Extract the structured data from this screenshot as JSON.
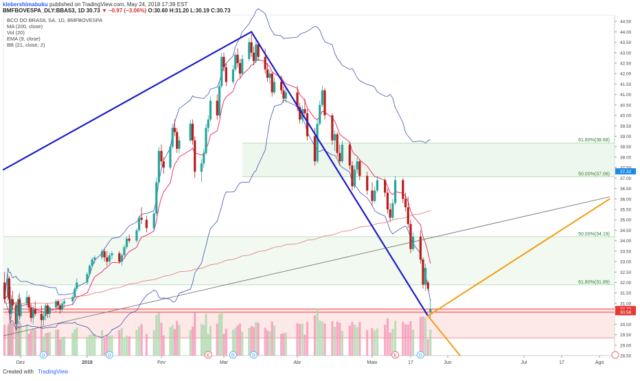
{
  "header": {
    "user": "klebershimabuku",
    "published_text": "published on TradingView.com, May 24, 2018 17:39 EST",
    "symbol": "BMFBOVESPA_DLY:BBAS3, 1D",
    "last": "30.73",
    "change": "▼ −0.97 (−3.06%)",
    "ohlc": "O:30.60 H:31.20 L:30.19 C:30.73"
  },
  "indicators": [
    "BCO DO BRASIL SA, 1D, BMFBOVESPA",
    "MA (200, close)",
    "Vol (20)",
    "EMA (9, close)",
    "BB (21, close, 2)"
  ],
  "footer": {
    "created_with": "Created with",
    "brand": "TradingView"
  },
  "colors": {
    "up": "#26a69a",
    "down": "#b71c1c",
    "ema": "#e91e63",
    "bb": "#3f51b5",
    "ma200": "#e57373",
    "trend": "#1a1ac8",
    "projection": "#f39c12",
    "fib": "#2e7d32",
    "price_tag": "#e53935",
    "volume_up": "#a5d6a7",
    "volume_down": "#f48fb1"
  },
  "chart_data": {
    "type": "candlestick",
    "ylim": [
      28.5,
      44.8
    ],
    "y_ticks": [
      "44.50",
      "44.00",
      "43.50",
      "43.00",
      "42.50",
      "42.00",
      "41.50",
      "41.00",
      "40.50",
      "40.00",
      "39.50",
      "39.00",
      "38.50",
      "38.00",
      "37.50",
      "37.00",
      "36.50",
      "36.00",
      "35.50",
      "35.00",
      "34.50",
      "34.00",
      "33.50",
      "33.00",
      "32.50",
      "32.00",
      "31.50",
      "31.00",
      "30.50",
      "30.00",
      "29.50",
      "29.00",
      "28.50"
    ],
    "x_ticks": [
      {
        "date": "2017-12-01",
        "label": "Dez"
      },
      {
        "date": "2018-01-02",
        "label": "2018"
      },
      {
        "date": "2018-02-01",
        "label": "Fev"
      },
      {
        "date": "2018-03-01",
        "label": "Mar"
      },
      {
        "date": "2018-04-02",
        "label": "Abr"
      },
      {
        "date": "2018-05-02",
        "label": "Maio"
      },
      {
        "date": "2018-05-17",
        "label": "17"
      },
      {
        "date": "2018-06-01",
        "label": "Jun"
      },
      {
        "date": "2018-07-02",
        "label": "Jul"
      },
      {
        "date": "2018-07-17",
        "label": "17"
      },
      {
        "date": "2018-08-01",
        "label": "Ago"
      }
    ],
    "price_labels": [
      {
        "value": 37.32,
        "text": "37.32",
        "bg": "#1e88e5"
      },
      {
        "value": 30.73,
        "text": "30.73",
        "bg": "#e53935"
      },
      {
        "value": 30.58,
        "text": "30.58",
        "bg": "#e53935"
      }
    ],
    "fib_levels": [
      {
        "text": "61.80%(38.68)",
        "value": 38.68
      },
      {
        "text": "50.00%(37.06)",
        "value": 37.06
      },
      {
        "text": "50.00%(34.19)",
        "value": 34.19
      },
      {
        "text": "61.80%(31.89)",
        "value": 31.89
      }
    ],
    "event_markers": [
      {
        "date": "2017-12-12",
        "letter": "D"
      },
      {
        "date": "2018-01-11",
        "letter": "D"
      },
      {
        "date": "2018-02-22",
        "letter": "E"
      },
      {
        "date": "2018-03-05",
        "letter": "D"
      },
      {
        "date": "2018-03-14",
        "letter": "D"
      },
      {
        "date": "2018-05-11",
        "letter": "E"
      },
      {
        "date": "2018-05-21",
        "letter": "D"
      }
    ],
    "trend_lines": [
      {
        "from": [
          "2017-11-16",
          37.4
        ],
        "to": [
          "2018-03-13",
          44.0
        ],
        "color": "trend"
      },
      {
        "from": [
          "2018-03-13",
          44.0
        ],
        "to": [
          "2018-05-24",
          30.4
        ],
        "color": "trend"
      },
      {
        "from": [
          "2017-11-16",
          29.45
        ],
        "to": [
          "2018-08-05",
          36.1
        ],
        "color": "thin"
      },
      {
        "from": [
          "2018-05-24",
          30.4
        ],
        "to": [
          "2018-08-05",
          36.0
        ],
        "color": "projection"
      },
      {
        "from": [
          "2018-05-24",
          30.4
        ],
        "to": [
          "2018-06-06",
          28.5
        ],
        "color": "projection"
      }
    ],
    "candles": [
      {
        "date": "2017-11-17",
        "o": 32.0,
        "h": 32.5,
        "l": 31.0,
        "c": 31.2
      },
      {
        "date": "2017-11-20",
        "o": 31.3,
        "h": 32.4,
        "l": 31.1,
        "c": 32.2
      },
      {
        "date": "2017-11-21",
        "o": 32.2,
        "h": 32.3,
        "l": 31.0,
        "c": 31.2
      },
      {
        "date": "2017-11-22",
        "o": 31.2,
        "h": 31.8,
        "l": 30.2,
        "c": 30.5
      },
      {
        "date": "2017-11-23",
        "o": 30.5,
        "h": 31.4,
        "l": 30.3,
        "c": 31.2
      },
      {
        "date": "2017-11-24",
        "o": 31.2,
        "h": 31.6,
        "l": 30.7,
        "c": 30.9
      },
      {
        "date": "2017-11-27",
        "o": 30.9,
        "h": 31.1,
        "l": 29.7,
        "c": 30.0
      },
      {
        "date": "2017-11-28",
        "o": 30.0,
        "h": 31.0,
        "l": 29.8,
        "c": 30.8
      },
      {
        "date": "2017-11-29",
        "o": 30.8,
        "h": 31.4,
        "l": 30.6,
        "c": 31.2
      },
      {
        "date": "2017-11-30",
        "o": 31.2,
        "h": 31.5,
        "l": 30.2,
        "c": 30.4
      },
      {
        "date": "2017-12-01",
        "o": 30.4,
        "h": 31.3,
        "l": 30.3,
        "c": 31.0
      },
      {
        "date": "2017-12-04",
        "o": 31.0,
        "h": 31.6,
        "l": 30.8,
        "c": 31.3
      },
      {
        "date": "2017-12-05",
        "o": 31.3,
        "h": 31.4,
        "l": 30.6,
        "c": 30.8
      },
      {
        "date": "2017-12-06",
        "o": 30.8,
        "h": 31.0,
        "l": 30.1,
        "c": 30.3
      },
      {
        "date": "2017-12-07",
        "o": 30.3,
        "h": 30.9,
        "l": 30.0,
        "c": 30.7
      },
      {
        "date": "2017-12-08",
        "o": 30.7,
        "h": 31.1,
        "l": 30.4,
        "c": 30.5
      },
      {
        "date": "2017-12-11",
        "o": 30.5,
        "h": 30.9,
        "l": 30.0,
        "c": 30.2
      },
      {
        "date": "2017-12-12",
        "o": 30.2,
        "h": 30.6,
        "l": 29.9,
        "c": 30.4
      },
      {
        "date": "2017-12-13",
        "o": 30.4,
        "h": 31.0,
        "l": 30.2,
        "c": 30.9
      },
      {
        "date": "2017-12-14",
        "o": 30.9,
        "h": 31.0,
        "l": 30.3,
        "c": 30.5
      },
      {
        "date": "2017-12-15",
        "o": 30.5,
        "h": 30.9,
        "l": 30.3,
        "c": 30.8
      },
      {
        "date": "2017-12-18",
        "o": 30.8,
        "h": 31.2,
        "l": 30.6,
        "c": 31.1
      },
      {
        "date": "2017-12-19",
        "o": 31.1,
        "h": 31.2,
        "l": 30.7,
        "c": 30.9
      },
      {
        "date": "2017-12-20",
        "o": 30.9,
        "h": 31.0,
        "l": 30.5,
        "c": 30.7
      },
      {
        "date": "2017-12-21",
        "o": 30.7,
        "h": 31.1,
        "l": 30.6,
        "c": 31.0
      },
      {
        "date": "2017-12-22",
        "o": 31.0,
        "h": 31.2,
        "l": 30.8,
        "c": 31.1
      },
      {
        "date": "2017-12-26",
        "o": 31.1,
        "h": 31.4,
        "l": 30.9,
        "c": 31.3
      },
      {
        "date": "2017-12-27",
        "o": 31.3,
        "h": 31.8,
        "l": 31.2,
        "c": 31.7
      },
      {
        "date": "2017-12-28",
        "o": 31.7,
        "h": 32.2,
        "l": 31.6,
        "c": 32.0
      },
      {
        "date": "2018-01-02",
        "o": 32.0,
        "h": 32.5,
        "l": 31.9,
        "c": 32.4
      },
      {
        "date": "2018-01-03",
        "o": 32.4,
        "h": 32.9,
        "l": 32.3,
        "c": 32.8
      },
      {
        "date": "2018-01-04",
        "o": 32.8,
        "h": 33.2,
        "l": 32.7,
        "c": 33.1
      },
      {
        "date": "2018-01-05",
        "o": 33.1,
        "h": 33.3,
        "l": 32.9,
        "c": 33.2
      },
      {
        "date": "2018-01-08",
        "o": 33.2,
        "h": 33.6,
        "l": 33.1,
        "c": 33.5
      },
      {
        "date": "2018-01-09",
        "o": 33.5,
        "h": 33.6,
        "l": 33.0,
        "c": 33.2
      },
      {
        "date": "2018-01-10",
        "o": 33.2,
        "h": 33.5,
        "l": 32.8,
        "c": 33.0
      },
      {
        "date": "2018-01-11",
        "o": 33.0,
        "h": 33.4,
        "l": 32.9,
        "c": 33.3
      },
      {
        "date": "2018-01-12",
        "o": 33.3,
        "h": 33.5,
        "l": 33.1,
        "c": 33.4
      },
      {
        "date": "2018-01-15",
        "o": 33.4,
        "h": 33.5,
        "l": 32.9,
        "c": 33.0
      },
      {
        "date": "2018-01-16",
        "o": 33.0,
        "h": 33.4,
        "l": 32.8,
        "c": 33.3
      },
      {
        "date": "2018-01-17",
        "o": 33.3,
        "h": 33.8,
        "l": 33.2,
        "c": 33.7
      },
      {
        "date": "2018-01-18",
        "o": 33.7,
        "h": 34.2,
        "l": 33.6,
        "c": 34.1
      },
      {
        "date": "2018-01-19",
        "o": 34.1,
        "h": 34.3,
        "l": 33.9,
        "c": 34.0
      },
      {
        "date": "2018-01-22",
        "o": 34.0,
        "h": 34.6,
        "l": 33.9,
        "c": 34.5
      },
      {
        "date": "2018-01-23",
        "o": 34.5,
        "h": 35.2,
        "l": 34.4,
        "c": 35.1
      },
      {
        "date": "2018-01-24",
        "o": 35.1,
        "h": 35.6,
        "l": 34.8,
        "c": 35.0
      },
      {
        "date": "2018-01-26",
        "o": 35.0,
        "h": 35.2,
        "l": 34.4,
        "c": 34.6
      },
      {
        "date": "2018-01-29",
        "o": 34.6,
        "h": 35.4,
        "l": 34.5,
        "c": 35.3
      },
      {
        "date": "2018-01-30",
        "o": 35.3,
        "h": 37.0,
        "l": 35.2,
        "c": 36.8
      },
      {
        "date": "2018-01-31",
        "o": 36.8,
        "h": 38.5,
        "l": 36.7,
        "c": 38.3
      },
      {
        "date": "2018-02-01",
        "o": 38.3,
        "h": 38.6,
        "l": 37.6,
        "c": 37.8
      },
      {
        "date": "2018-02-02",
        "o": 37.8,
        "h": 38.0,
        "l": 37.2,
        "c": 37.5
      },
      {
        "date": "2018-02-05",
        "o": 37.5,
        "h": 38.6,
        "l": 37.4,
        "c": 38.5
      },
      {
        "date": "2018-02-06",
        "o": 38.5,
        "h": 39.6,
        "l": 38.4,
        "c": 39.4
      },
      {
        "date": "2018-02-07",
        "o": 39.4,
        "h": 39.8,
        "l": 39.0,
        "c": 39.2
      },
      {
        "date": "2018-02-08",
        "o": 39.2,
        "h": 39.4,
        "l": 38.2,
        "c": 38.4
      },
      {
        "date": "2018-02-09",
        "o": 38.4,
        "h": 39.0,
        "l": 38.2,
        "c": 38.8
      },
      {
        "date": "2018-02-14",
        "o": 38.8,
        "h": 39.8,
        "l": 38.7,
        "c": 39.6
      },
      {
        "date": "2018-02-15",
        "o": 39.6,
        "h": 39.8,
        "l": 38.6,
        "c": 38.8
      },
      {
        "date": "2018-02-16",
        "o": 38.8,
        "h": 39.0,
        "l": 37.0,
        "c": 37.3
      },
      {
        "date": "2018-02-19",
        "o": 37.3,
        "h": 37.9,
        "l": 36.8,
        "c": 37.7
      },
      {
        "date": "2018-02-20",
        "o": 37.7,
        "h": 38.4,
        "l": 37.5,
        "c": 38.2
      },
      {
        "date": "2018-02-21",
        "o": 38.2,
        "h": 39.6,
        "l": 38.1,
        "c": 39.4
      },
      {
        "date": "2018-02-22",
        "o": 39.4,
        "h": 40.0,
        "l": 39.2,
        "c": 39.8
      },
      {
        "date": "2018-02-23",
        "o": 39.8,
        "h": 40.9,
        "l": 39.7,
        "c": 40.7
      },
      {
        "date": "2018-02-26",
        "o": 40.7,
        "h": 41.0,
        "l": 39.8,
        "c": 40.0
      },
      {
        "date": "2018-02-27",
        "o": 40.0,
        "h": 41.6,
        "l": 39.9,
        "c": 41.4
      },
      {
        "date": "2018-02-28",
        "o": 41.4,
        "h": 43.0,
        "l": 41.3,
        "c": 42.8
      },
      {
        "date": "2018-03-01",
        "o": 42.8,
        "h": 43.0,
        "l": 42.1,
        "c": 42.3
      },
      {
        "date": "2018-03-02",
        "o": 42.3,
        "h": 42.5,
        "l": 41.4,
        "c": 41.6
      },
      {
        "date": "2018-03-05",
        "o": 41.6,
        "h": 42.4,
        "l": 41.5,
        "c": 42.2
      },
      {
        "date": "2018-03-06",
        "o": 42.2,
        "h": 43.0,
        "l": 42.1,
        "c": 42.9
      },
      {
        "date": "2018-03-07",
        "o": 42.9,
        "h": 43.2,
        "l": 42.3,
        "c": 42.5
      },
      {
        "date": "2018-03-08",
        "o": 42.5,
        "h": 42.7,
        "l": 41.8,
        "c": 42.0
      },
      {
        "date": "2018-03-09",
        "o": 42.0,
        "h": 42.9,
        "l": 41.9,
        "c": 42.7
      },
      {
        "date": "2018-03-12",
        "o": 42.7,
        "h": 43.7,
        "l": 42.6,
        "c": 43.5
      },
      {
        "date": "2018-03-13",
        "o": 43.5,
        "h": 43.9,
        "l": 42.8,
        "c": 43.0
      },
      {
        "date": "2018-03-14",
        "o": 43.0,
        "h": 43.3,
        "l": 42.4,
        "c": 42.6
      },
      {
        "date": "2018-03-15",
        "o": 42.6,
        "h": 43.6,
        "l": 42.5,
        "c": 43.4
      },
      {
        "date": "2018-03-16",
        "o": 43.4,
        "h": 43.5,
        "l": 42.6,
        "c": 42.8
      },
      {
        "date": "2018-03-19",
        "o": 42.8,
        "h": 43.2,
        "l": 42.0,
        "c": 42.2
      },
      {
        "date": "2018-03-20",
        "o": 42.2,
        "h": 42.5,
        "l": 41.6,
        "c": 41.8
      },
      {
        "date": "2018-03-21",
        "o": 41.8,
        "h": 42.2,
        "l": 41.5,
        "c": 42.0
      },
      {
        "date": "2018-03-22",
        "o": 42.0,
        "h": 42.1,
        "l": 40.9,
        "c": 41.1
      },
      {
        "date": "2018-03-23",
        "o": 41.1,
        "h": 41.8,
        "l": 41.0,
        "c": 41.6
      },
      {
        "date": "2018-03-26",
        "o": 41.6,
        "h": 41.9,
        "l": 41.0,
        "c": 41.2
      },
      {
        "date": "2018-03-27",
        "o": 41.2,
        "h": 41.4,
        "l": 40.6,
        "c": 40.8
      },
      {
        "date": "2018-03-28",
        "o": 40.8,
        "h": 41.3,
        "l": 40.6,
        "c": 41.1
      },
      {
        "date": "2018-04-02",
        "o": 41.1,
        "h": 41.4,
        "l": 40.2,
        "c": 40.4
      },
      {
        "date": "2018-04-03",
        "o": 40.4,
        "h": 40.6,
        "l": 39.6,
        "c": 39.8
      },
      {
        "date": "2018-04-04",
        "o": 39.8,
        "h": 40.5,
        "l": 39.6,
        "c": 40.3
      },
      {
        "date": "2018-04-05",
        "o": 40.3,
        "h": 40.8,
        "l": 40.0,
        "c": 40.1
      },
      {
        "date": "2018-04-06",
        "o": 40.1,
        "h": 40.3,
        "l": 38.8,
        "c": 39.0
      },
      {
        "date": "2018-04-09",
        "o": 39.0,
        "h": 39.4,
        "l": 37.6,
        "c": 37.8
      },
      {
        "date": "2018-04-10",
        "o": 37.8,
        "h": 39.8,
        "l": 37.7,
        "c": 39.6
      },
      {
        "date": "2018-04-11",
        "o": 39.6,
        "h": 40.7,
        "l": 39.5,
        "c": 40.5
      },
      {
        "date": "2018-04-12",
        "o": 40.5,
        "h": 41.4,
        "l": 40.4,
        "c": 41.2
      },
      {
        "date": "2018-04-13",
        "o": 41.2,
        "h": 41.3,
        "l": 39.8,
        "c": 40.0
      },
      {
        "date": "2018-04-16",
        "o": 40.0,
        "h": 40.1,
        "l": 38.6,
        "c": 38.8
      },
      {
        "date": "2018-04-17",
        "o": 38.8,
        "h": 39.3,
        "l": 38.3,
        "c": 39.1
      },
      {
        "date": "2018-04-18",
        "o": 39.1,
        "h": 39.2,
        "l": 38.0,
        "c": 38.2
      },
      {
        "date": "2018-04-19",
        "o": 38.2,
        "h": 38.6,
        "l": 37.6,
        "c": 37.8
      },
      {
        "date": "2018-04-20",
        "o": 37.8,
        "h": 38.8,
        "l": 37.7,
        "c": 38.6
      },
      {
        "date": "2018-04-23",
        "o": 38.6,
        "h": 38.7,
        "l": 37.4,
        "c": 37.6
      },
      {
        "date": "2018-04-24",
        "o": 37.6,
        "h": 37.8,
        "l": 36.4,
        "c": 36.6
      },
      {
        "date": "2018-04-25",
        "o": 36.6,
        "h": 37.6,
        "l": 36.5,
        "c": 37.4
      },
      {
        "date": "2018-04-26",
        "o": 37.4,
        "h": 38.0,
        "l": 37.2,
        "c": 37.8
      },
      {
        "date": "2018-04-27",
        "o": 37.8,
        "h": 37.9,
        "l": 36.9,
        "c": 37.1
      },
      {
        "date": "2018-04-30",
        "o": 37.1,
        "h": 37.3,
        "l": 36.2,
        "c": 36.4
      },
      {
        "date": "2018-05-02",
        "o": 36.4,
        "h": 36.8,
        "l": 35.7,
        "c": 35.9
      },
      {
        "date": "2018-05-03",
        "o": 35.9,
        "h": 36.6,
        "l": 35.8,
        "c": 36.4
      },
      {
        "date": "2018-05-04",
        "o": 36.4,
        "h": 37.1,
        "l": 36.3,
        "c": 36.9
      },
      {
        "date": "2018-05-07",
        "o": 36.9,
        "h": 37.0,
        "l": 36.1,
        "c": 36.3
      },
      {
        "date": "2018-05-08",
        "o": 36.3,
        "h": 36.5,
        "l": 35.3,
        "c": 35.5
      },
      {
        "date": "2018-05-09",
        "o": 35.5,
        "h": 35.8,
        "l": 34.9,
        "c": 35.1
      },
      {
        "date": "2018-05-10",
        "o": 35.1,
        "h": 36.0,
        "l": 35.0,
        "c": 35.8
      },
      {
        "date": "2018-05-11",
        "o": 35.8,
        "h": 37.1,
        "l": 35.7,
        "c": 36.9
      },
      {
        "date": "2018-05-14",
        "o": 36.9,
        "h": 37.0,
        "l": 35.8,
        "c": 36.0
      },
      {
        "date": "2018-05-15",
        "o": 36.0,
        "h": 36.3,
        "l": 35.4,
        "c": 35.6
      },
      {
        "date": "2018-05-16",
        "o": 35.6,
        "h": 36.1,
        "l": 34.6,
        "c": 34.8
      },
      {
        "date": "2018-05-17",
        "o": 34.8,
        "h": 35.0,
        "l": 33.4,
        "c": 33.6
      },
      {
        "date": "2018-05-18",
        "o": 33.6,
        "h": 34.4,
        "l": 33.5,
        "c": 34.2
      },
      {
        "date": "2018-05-21",
        "o": 34.2,
        "h": 34.5,
        "l": 32.9,
        "c": 33.1
      },
      {
        "date": "2018-05-22",
        "o": 33.1,
        "h": 33.2,
        "l": 31.7,
        "c": 31.9
      },
      {
        "date": "2018-05-23",
        "o": 31.9,
        "h": 32.9,
        "l": 31.6,
        "c": 32.7
      },
      {
        "date": "2018-05-24",
        "o": 32.0,
        "h": 32.1,
        "l": 31.6,
        "c": 31.7
      },
      {
        "date": "2018-05-25",
        "o": 30.6,
        "h": 31.2,
        "l": 30.2,
        "c": 30.73
      }
    ]
  }
}
